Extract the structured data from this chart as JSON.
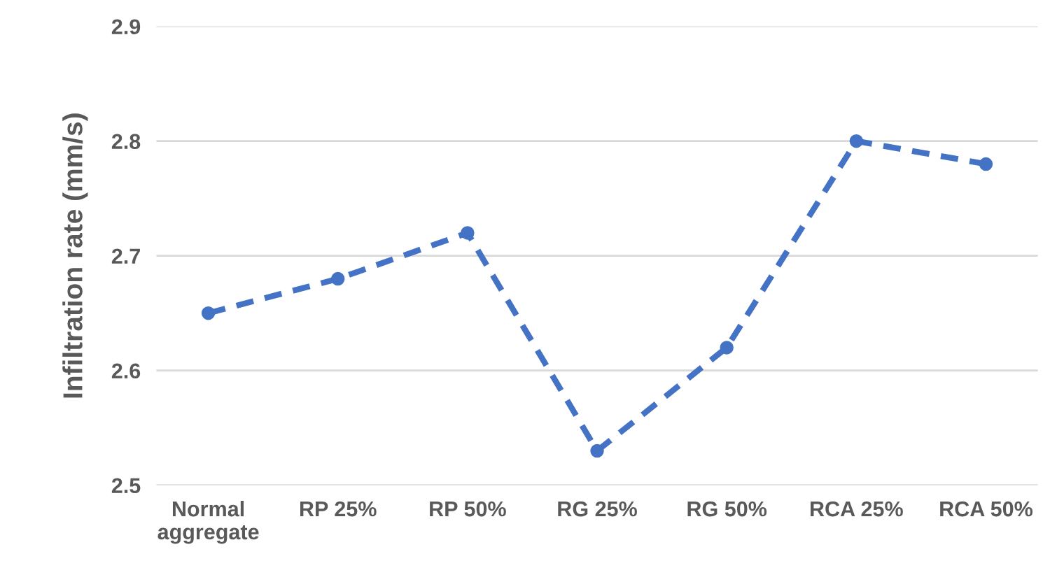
{
  "chart_data": {
    "type": "line",
    "ylabel": "Infiltration rate (mm/s)",
    "categories": [
      "Normal\naggregate",
      "RP 25%",
      "RP 50%",
      "RG 25%",
      "RG 50%",
      "RCA 25%",
      "RCA 50%"
    ],
    "series": [
      {
        "color": "#4472c4",
        "values": [
          2.65,
          2.68,
          2.72,
          2.53,
          2.62,
          2.8,
          2.78
        ]
      }
    ],
    "ylim": [
      2.5,
      2.9
    ],
    "yticks": [
      2.5,
      2.6,
      2.7,
      2.8,
      2.9
    ],
    "grid": "y",
    "marker": "circle",
    "line_style": "dashed"
  }
}
